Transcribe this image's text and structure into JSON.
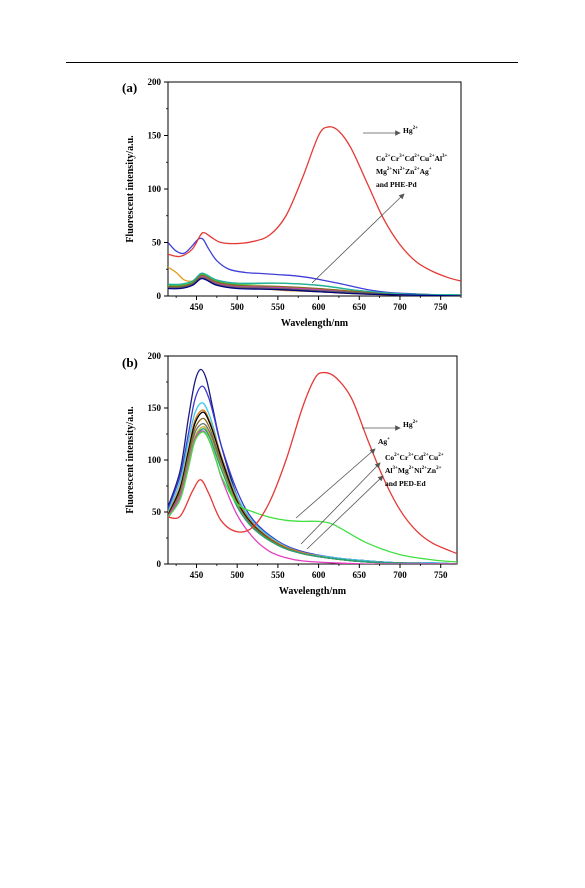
{
  "chart_data": [
    {
      "panel_label": "(a)",
      "type": "line",
      "xlabel": "Wavelength/nm",
      "ylabel": "Fluorescent intensity/a.u.",
      "xlim": [
        415,
        775
      ],
      "ylim": [
        0,
        200
      ],
      "x_ticks": [
        450,
        500,
        550,
        600,
        650,
        700,
        750
      ],
      "y_ticks": [
        0,
        50,
        100,
        150,
        200
      ],
      "annotations": [
        {
          "id": "hg",
          "lines": [
            [
              [
                "Hg",
                ""
              ],
              [
                "2+",
                "sup"
              ]
            ]
          ]
        },
        {
          "id": "others",
          "lines": [
            [
              [
                "Co",
                ""
              ],
              [
                "2+",
                "sup"
              ],
              [
                "Cr",
                ""
              ],
              [
                "3+",
                "sup"
              ],
              [
                "Cd",
                ""
              ],
              [
                "2+",
                "sup"
              ],
              [
                "Cu",
                ""
              ],
              [
                "2+",
                "sup"
              ],
              [
                "Al",
                ""
              ],
              [
                "3+",
                "sup"
              ]
            ],
            [
              [
                "Mg",
                ""
              ],
              [
                "2+",
                "sup"
              ],
              [
                "Ni",
                ""
              ],
              [
                "2+",
                "sup"
              ],
              [
                "Zn",
                ""
              ],
              [
                "2+",
                "sup"
              ],
              [
                "Ag",
                ""
              ],
              [
                "+",
                "sup"
              ]
            ],
            [
              [
                "and PHE-Pd",
                ""
              ]
            ]
          ]
        }
      ],
      "series": [
        {
          "color": "#e53935",
          "x": [
            415,
            430,
            445,
            455,
            460,
            470,
            480,
            500,
            520,
            540,
            560,
            580,
            600,
            612,
            625,
            640,
            660,
            680,
            700,
            720,
            740,
            760,
            775
          ],
          "y": [
            39,
            37,
            44,
            57,
            59,
            54,
            50,
            49,
            51,
            57,
            75,
            110,
            150,
            158,
            154,
            138,
            105,
            72,
            48,
            32,
            23,
            17,
            14
          ]
        },
        {
          "color": "#3f3fd9",
          "x": [
            415,
            425,
            435,
            445,
            452,
            458,
            465,
            475,
            490,
            510,
            530,
            550,
            570,
            590,
            610,
            630,
            660,
            690,
            720,
            750,
            775
          ],
          "y": [
            50,
            42,
            40,
            47,
            53,
            53,
            44,
            33,
            25,
            22,
            21,
            20,
            19,
            17,
            14,
            11,
            6,
            3,
            2,
            1,
            1
          ]
        },
        {
          "color": "#e0a020",
          "x": [
            415,
            425,
            435,
            445,
            455,
            465,
            480,
            500,
            530,
            560,
            600,
            650,
            700,
            775
          ],
          "y": [
            27,
            22,
            15,
            14,
            18,
            14,
            11,
            9,
            7,
            5,
            4,
            2,
            1,
            1
          ]
        },
        {
          "color": "#40c040",
          "x": [
            415,
            430,
            445,
            455,
            462,
            475,
            500,
            550,
            600,
            650,
            700,
            775
          ],
          "y": [
            10,
            10,
            13,
            20,
            19,
            14,
            11,
            12,
            10,
            5,
            2,
            1
          ]
        },
        {
          "color": "#20b0a0",
          "x": [
            415,
            430,
            445,
            455,
            462,
            475,
            500,
            550,
            600,
            650,
            700,
            775
          ],
          "y": [
            11,
            11,
            14,
            21,
            20,
            15,
            12,
            12,
            10,
            5,
            2,
            1
          ]
        },
        {
          "color": "#d040c0",
          "x": [
            415,
            430,
            445,
            455,
            462,
            475,
            500,
            550,
            600,
            650,
            700,
            775
          ],
          "y": [
            8,
            8,
            11,
            18,
            17,
            12,
            9,
            8,
            6,
            3,
            1,
            0
          ]
        },
        {
          "color": "#8a6a20",
          "x": [
            415,
            430,
            445,
            455,
            462,
            475,
            500,
            550,
            600,
            650,
            700,
            775
          ],
          "y": [
            9,
            9,
            12,
            19,
            18,
            13,
            10,
            9,
            7,
            4,
            1,
            0
          ]
        },
        {
          "color": "#606060",
          "x": [
            415,
            430,
            445,
            455,
            462,
            475,
            500,
            550,
            600,
            650,
            700,
            775
          ],
          "y": [
            8,
            8,
            11,
            17,
            16,
            11,
            8,
            7,
            5,
            3,
            1,
            0
          ]
        },
        {
          "color": "#000080",
          "x": [
            415,
            430,
            445,
            455,
            462,
            475,
            500,
            550,
            600,
            650,
            700,
            775
          ],
          "y": [
            7,
            7,
            10,
            16,
            15,
            10,
            7,
            6,
            4,
            2,
            1,
            0
          ]
        }
      ]
    },
    {
      "panel_label": "(b)",
      "type": "line",
      "xlabel": "Wavelength/nm",
      "ylabel": "Fluorescent intensity/a.u.",
      "xlim": [
        415,
        770
      ],
      "ylim": [
        0,
        200
      ],
      "x_ticks": [
        450,
        500,
        550,
        600,
        650,
        700,
        750
      ],
      "y_ticks": [
        0,
        50,
        100,
        150,
        200
      ],
      "annotations": [
        {
          "id": "hg",
          "lines": [
            [
              [
                "Hg",
                ""
              ],
              [
                "2+",
                "sup"
              ]
            ]
          ]
        },
        {
          "id": "ag",
          "lines": [
            [
              [
                "Ag",
                ""
              ],
              [
                "+",
                "sup"
              ]
            ]
          ]
        },
        {
          "id": "others",
          "lines": [
            [
              [
                "Co",
                ""
              ],
              [
                "2+",
                "sup"
              ],
              [
                "Cr",
                ""
              ],
              [
                "3+",
                "sup"
              ],
              [
                "Cd",
                ""
              ],
              [
                "2+",
                "sup"
              ],
              [
                "Cu",
                ""
              ],
              [
                "2+",
                "sup"
              ]
            ],
            [
              [
                "Al",
                ""
              ],
              [
                "3+",
                "sup"
              ],
              [
                "Mg",
                ""
              ],
              [
                "2+",
                "sup"
              ],
              [
                "Ni",
                ""
              ],
              [
                "2+",
                "sup"
              ],
              [
                "Zn",
                ""
              ],
              [
                "2+",
                "sup"
              ]
            ],
            [
              [
                "and PED-Ed",
                ""
              ]
            ]
          ]
        }
      ],
      "series": [
        {
          "color": "#e53935",
          "x": [
            415,
            430,
            445,
            455,
            465,
            480,
            500,
            520,
            540,
            560,
            580,
            595,
            605,
            620,
            640,
            660,
            680,
            700,
            720,
            740,
            770
          ],
          "y": [
            45,
            46,
            70,
            81,
            68,
            42,
            31,
            36,
            60,
            100,
            150,
            178,
            184,
            180,
            160,
            120,
            82,
            52,
            32,
            20,
            10
          ]
        },
        {
          "color": "#1a1a80",
          "x": [
            415,
            430,
            440,
            448,
            455,
            462,
            470,
            480,
            500,
            520,
            550,
            580,
            620,
            660,
            700,
            740,
            770
          ],
          "y": [
            55,
            90,
            140,
            175,
            187,
            178,
            150,
            115,
            65,
            38,
            20,
            11,
            6,
            3,
            1,
            1,
            0
          ]
        },
        {
          "color": "#3a3ad0",
          "x": [
            415,
            430,
            440,
            448,
            457,
            465,
            472,
            480,
            500,
            520,
            550,
            580,
            620,
            660,
            700,
            740,
            770
          ],
          "y": [
            53,
            85,
            125,
            158,
            171,
            160,
            140,
            115,
            70,
            42,
            22,
            12,
            6,
            3,
            1,
            1,
            0
          ]
        },
        {
          "color": "#40c8e8",
          "x": [
            415,
            430,
            440,
            448,
            457,
            465,
            472,
            480,
            500,
            520,
            550,
            580,
            620,
            660,
            700,
            740,
            770
          ],
          "y": [
            50,
            80,
            118,
            145,
            155,
            145,
            128,
            105,
            65,
            40,
            21,
            11,
            6,
            3,
            1,
            1,
            0
          ]
        },
        {
          "color": "#e08020",
          "x": [
            415,
            430,
            440,
            448,
            458,
            466,
            474,
            482,
            500,
            520,
            550,
            580,
            620,
            660,
            700,
            740,
            770
          ],
          "y": [
            48,
            75,
            110,
            138,
            148,
            138,
            120,
            100,
            62,
            38,
            20,
            11,
            5,
            2,
            1,
            0,
            0
          ]
        },
        {
          "color": "#000000",
          "x": [
            415,
            430,
            440,
            448,
            458,
            466,
            474,
            482,
            500,
            520,
            550,
            580,
            620,
            660,
            700,
            740,
            770
          ],
          "y": [
            47,
            73,
            108,
            135,
            146,
            136,
            118,
            98,
            60,
            37,
            19,
            10,
            5,
            2,
            1,
            0,
            0
          ]
        },
        {
          "color": "#8a6a20",
          "x": [
            415,
            430,
            440,
            448,
            458,
            466,
            474,
            482,
            500,
            520,
            550,
            580,
            620,
            660,
            700,
            740,
            770
          ],
          "y": [
            46,
            70,
            104,
            130,
            140,
            131,
            113,
            94,
            58,
            36,
            19,
            10,
            5,
            2,
            1,
            0,
            0
          ]
        },
        {
          "color": "#707070",
          "x": [
            415,
            430,
            440,
            448,
            458,
            466,
            474,
            482,
            500,
            520,
            550,
            580,
            620,
            660,
            700,
            740,
            770
          ],
          "y": [
            45,
            68,
            100,
            126,
            135,
            127,
            110,
            92,
            57,
            35,
            18,
            10,
            5,
            2,
            1,
            0,
            0
          ]
        },
        {
          "color": "#b8b820",
          "x": [
            415,
            430,
            440,
            448,
            458,
            466,
            474,
            482,
            500,
            520,
            550,
            580,
            620,
            660,
            700,
            740,
            770
          ],
          "y": [
            44,
            66,
            97,
            122,
            132,
            124,
            107,
            90,
            56,
            34,
            18,
            10,
            5,
            2,
            1,
            0,
            0
          ]
        },
        {
          "color": "#20a080",
          "x": [
            415,
            430,
            440,
            448,
            458,
            466,
            474,
            482,
            500,
            520,
            550,
            580,
            620,
            660,
            700,
            740,
            770
          ],
          "y": [
            44,
            65,
            95,
            120,
            130,
            122,
            105,
            88,
            55,
            34,
            18,
            10,
            5,
            2,
            1,
            0,
            0
          ]
        },
        {
          "color": "#e040c0",
          "x": [
            415,
            430,
            440,
            448,
            458,
            466,
            474,
            482,
            500,
            520,
            540,
            560,
            580,
            620,
            660,
            700,
            740,
            770
          ],
          "y": [
            46,
            65,
            95,
            120,
            128,
            118,
            100,
            80,
            47,
            25,
            12,
            6,
            3,
            1,
            0,
            0,
            0,
            0
          ]
        },
        {
          "color": "#40e040",
          "x": [
            415,
            430,
            440,
            448,
            458,
            466,
            474,
            482,
            500,
            520,
            540,
            560,
            580,
            600,
            615,
            630,
            660,
            700,
            740,
            770
          ],
          "y": [
            45,
            62,
            92,
            118,
            127,
            118,
            100,
            82,
            58,
            50,
            45,
            42,
            41,
            41,
            39,
            33,
            20,
            9,
            4,
            2
          ]
        }
      ]
    }
  ]
}
